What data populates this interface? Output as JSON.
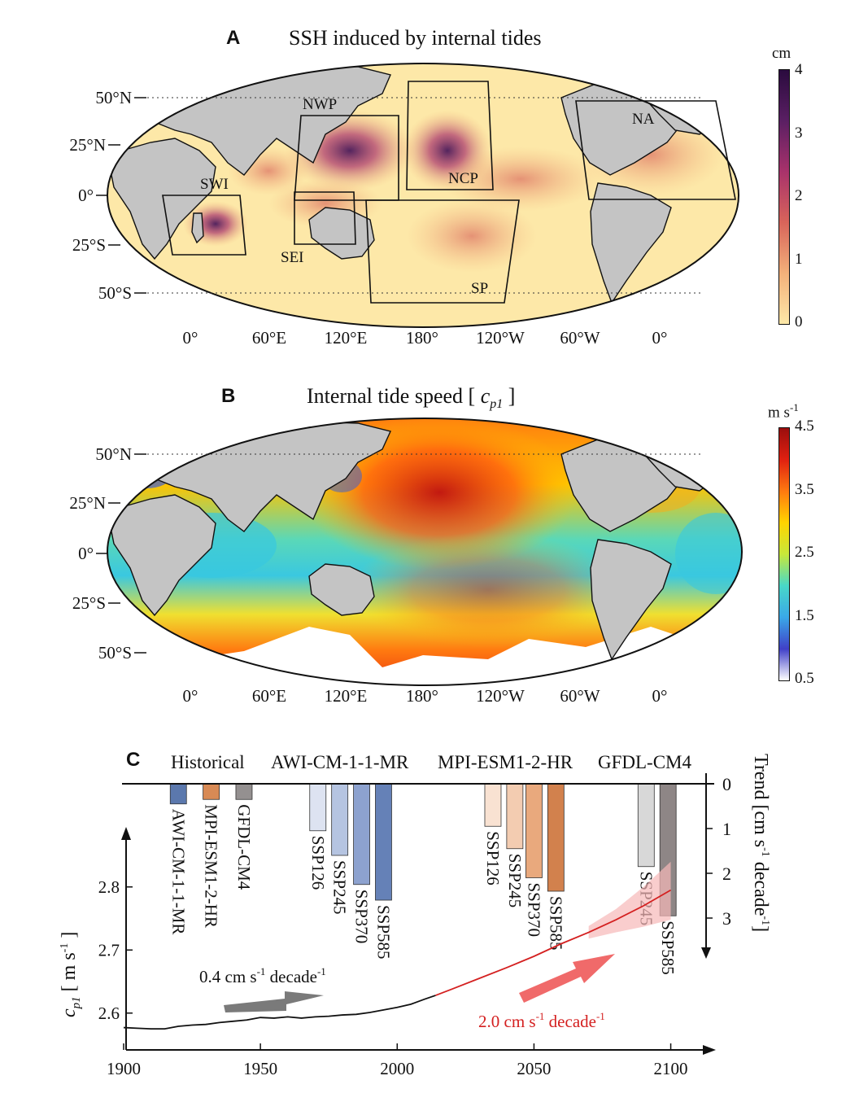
{
  "panel_a": {
    "letter": "A",
    "title": "SSH induced by internal tides",
    "lat_labels": [
      "50°N",
      "25°N",
      "0°",
      "25°S",
      "50°S"
    ],
    "lon_labels": [
      "0°",
      "60°E",
      "120°E",
      "180°",
      "120°W",
      "60°W",
      "0°"
    ],
    "regions": [
      "NWP",
      "NCP",
      "NA",
      "SWI",
      "SEI",
      "SP"
    ],
    "colorbar": {
      "unit": "cm",
      "ticks": [
        "4",
        "3",
        "2",
        "1",
        "0"
      ],
      "colors": [
        "#fde8a8",
        "#f3b07a",
        "#d8645a",
        "#a8326b",
        "#5a1f63",
        "#2a0b3e"
      ]
    }
  },
  "panel_b": {
    "letter": "B",
    "title_prefix": "Internal tide speed [ ",
    "title_symbol": "c",
    "title_subscript": "p1",
    "title_suffix": " ]",
    "lat_labels": [
      "50°N",
      "25°N",
      "0°",
      "25°S",
      "50°S"
    ],
    "lon_labels": [
      "0°",
      "60°E",
      "120°E",
      "180°",
      "120°W",
      "60°W",
      "0°"
    ],
    "colorbar": {
      "unit": "m s",
      "unit_exp": "-1",
      "ticks": [
        "4.5",
        "3.5",
        "2.5",
        "1.5",
        "0.5"
      ],
      "colors": [
        "#ffffff",
        "#4040c8",
        "#3aa8e8",
        "#48d8c8",
        "#c8e83a",
        "#ffd400",
        "#ff7a10",
        "#e02010",
        "#9a0e0e"
      ]
    }
  },
  "chart_data": {
    "type": "line",
    "letter": "C",
    "group_labels": [
      "Historical",
      "AWI-CM-1-1-MR",
      "MPI-ESM1-2-HR",
      "GFDL-CM4"
    ],
    "xlabel": "",
    "ylabel_symbol": "c",
    "ylabel_sub": "p1",
    "ylabel_unit_prefix": " [ m s",
    "ylabel_unit_exp": "-1",
    "ylabel_unit_suffix": " ]",
    "xticks": [
      1900,
      1950,
      2000,
      2050,
      2100
    ],
    "xlim": [
      1900,
      2115
    ],
    "yticks": [
      2.6,
      2.7,
      2.8
    ],
    "ylim": [
      2.57,
      2.89
    ],
    "right_axis": {
      "label_prefix": "Trend [cm s",
      "label_exp1": "-1",
      "label_mid": " decade",
      "label_exp2": "-1",
      "label_suffix": "]",
      "ticks": [
        0,
        1,
        2,
        3
      ],
      "ylim": [
        0,
        3.9
      ]
    },
    "series": [
      {
        "name": "historical",
        "color": "#111111",
        "x": [
          1900,
          1905,
          1910,
          1915,
          1920,
          1925,
          1930,
          1935,
          1940,
          1945,
          1950,
          1955,
          1960,
          1965,
          1970,
          1975,
          1980,
          1985,
          1990,
          1995,
          2000,
          2005,
          2010,
          2014
        ],
        "y": [
          2.577,
          2.576,
          2.575,
          2.575,
          2.579,
          2.581,
          2.582,
          2.585,
          2.587,
          2.589,
          2.593,
          2.592,
          2.594,
          2.592,
          2.594,
          2.595,
          2.597,
          2.598,
          2.601,
          2.605,
          2.609,
          2.614,
          2.622,
          2.628
        ]
      },
      {
        "name": "projection",
        "color": "#d42020",
        "x": [
          2014,
          2020,
          2030,
          2040,
          2050,
          2060,
          2070,
          2080,
          2090,
          2100
        ],
        "y": [
          2.628,
          2.638,
          2.655,
          2.672,
          2.69,
          2.71,
          2.728,
          2.748,
          2.77,
          2.795
        ]
      }
    ],
    "uncertainty_band": {
      "x": [
        2070,
        2080,
        2090,
        2100
      ],
      "lower": [
        2.718,
        2.728,
        2.737,
        2.748
      ],
      "upper": [
        2.738,
        2.765,
        2.8,
        2.84
      ]
    },
    "trend_bars": [
      {
        "label": "AWI-CM-1-1-MR",
        "value": 0.45,
        "color": "#5b78ad",
        "x": 1920
      },
      {
        "label": "MPI-ESM1-2-HR",
        "value": 0.35,
        "color": "#d88a55",
        "x": 1932
      },
      {
        "label": "GFDL-CM4",
        "value": 0.35,
        "color": "#949090",
        "x": 1944
      },
      {
        "label": "SSP126",
        "value": 1.05,
        "color": "#dde3f1",
        "x": 1971
      },
      {
        "label": "SSP245",
        "value": 1.6,
        "color": "#b5c4e1",
        "x": 1979
      },
      {
        "label": "SSP370",
        "value": 2.25,
        "color": "#8da2cf",
        "x": 1987
      },
      {
        "label": "SSP585",
        "value": 2.6,
        "color": "#6581b7",
        "x": 1995
      },
      {
        "label": "SSP126",
        "value": 0.95,
        "color": "#f9e2d2",
        "x": 2035
      },
      {
        "label": "SSP245",
        "value": 1.45,
        "color": "#f3ccb1",
        "x": 2043
      },
      {
        "label": "SSP370",
        "value": 2.1,
        "color": "#e9a97d",
        "x": 2050
      },
      {
        "label": "SSP585",
        "value": 2.4,
        "color": "#d2814d",
        "x": 2058
      },
      {
        "label": "SSP245",
        "value": 1.85,
        "color": "#d8d8d8",
        "x": 2091
      },
      {
        "label": "SSP585",
        "value": 2.95,
        "color": "#8e8686",
        "x": 2099
      }
    ],
    "annotations": [
      {
        "text_prefix": "0.4 cm s",
        "exp1": "-1",
        "mid": " decade",
        "exp2": "-1",
        "color": "#111111"
      },
      {
        "text_prefix": "2.0 cm s",
        "exp1": "-1",
        "mid": " decade",
        "exp2": "-1",
        "color": "#d42020"
      }
    ],
    "arrow_colors": {
      "historical": "#7a7a7a",
      "projection": "#f06a6a"
    }
  }
}
